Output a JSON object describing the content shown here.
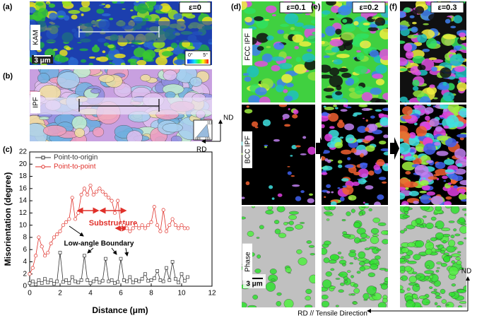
{
  "panels": {
    "a": {
      "label": "(a)",
      "strain": "ε=0",
      "map": "KAM",
      "scale": "3 μm",
      "key_min": "0°",
      "key_max": "5°"
    },
    "b": {
      "label": "(b)",
      "map": "IPF",
      "key": [
        "111",
        "001",
        "101"
      ]
    },
    "c": {
      "label": "(c)"
    },
    "ab_axes": {
      "nd": "ND",
      "rd": "RD"
    },
    "columns": [
      {
        "label": "(d)",
        "strain": "ε=0.1"
      },
      {
        "label": "(e)",
        "strain": "ε=0.2"
      },
      {
        "label": "(f)",
        "strain": "ε=0.3"
      }
    ],
    "rows": [
      "FCC IPF",
      "BCC IPF",
      "Phase"
    ],
    "scale": "3 μm",
    "right_axes": {
      "nd": "ND",
      "rd": "RD // Tensile Direction"
    }
  },
  "chart_data": {
    "type": "line",
    "xlabel": "Distance (μm)",
    "ylabel": "Misorientation (degree)",
    "x": [
      0.0,
      0.2,
      0.4,
      0.6,
      0.8,
      1.0,
      1.2,
      1.4,
      1.6,
      1.8,
      2.0,
      2.2,
      2.4,
      2.6,
      2.8,
      3.0,
      3.2,
      3.4,
      3.6,
      3.8,
      4.0,
      4.2,
      4.4,
      4.6,
      4.8,
      5.0,
      5.2,
      5.4,
      5.6,
      5.8,
      6.0,
      6.2,
      6.4,
      6.6,
      6.8,
      7.0,
      7.2,
      7.4,
      7.6,
      7.8,
      8.0,
      8.2,
      8.4,
      8.6,
      8.8,
      9.0,
      9.2,
      9.4,
      9.6,
      9.8,
      10.0,
      10.2,
      10.4
    ],
    "series": [
      {
        "name": "Point-to-origin",
        "color": "#333333",
        "marker": "square",
        "values": [
          0.5,
          0.8,
          0.3,
          1,
          0.5,
          1.2,
          0.6,
          1,
          0.4,
          0.8,
          5.5,
          0.7,
          1,
          0.5,
          1.5,
          0.8,
          0.6,
          1,
          5,
          1,
          0.5,
          0.8,
          1.2,
          0.6,
          0.9,
          4.5,
          0.8,
          1,
          0.5,
          0.7,
          4.5,
          1,
          0.8,
          1.5,
          0.6,
          1,
          0.8,
          1.2,
          2,
          0.9,
          1,
          1.3,
          2.5,
          1,
          0.8,
          3,
          1,
          4,
          1.2,
          0.6,
          2,
          0.9,
          1.5
        ]
      },
      {
        "name": "Point-to-point",
        "color": "#e0302a",
        "marker": "circle",
        "values": [
          2,
          3,
          5,
          8,
          6.5,
          5,
          5.5,
          7,
          8,
          8.5,
          9,
          10,
          10.5,
          11,
          14.5,
          11,
          12,
          15,
          16,
          15,
          16.5,
          15,
          15.5,
          16,
          15.5,
          15,
          14.5,
          14,
          12,
          14,
          10,
          10,
          9.5,
          9,
          9.5,
          10,
          9.5,
          10,
          9.5,
          10,
          10.5,
          13,
          10,
          9,
          12.5,
          9,
          10,
          11,
          10,
          9.5,
          10,
          9.5,
          9.5
        ]
      }
    ],
    "annotations": [
      "Substructure",
      "Low-angle Boundary"
    ],
    "xlim": [
      0,
      12
    ],
    "xticks": [
      0,
      2,
      4,
      6,
      8,
      10,
      12
    ],
    "ylim": [
      0,
      22
    ],
    "yticks": [
      0,
      2,
      4,
      6,
      8,
      10,
      12,
      14,
      16,
      18,
      20,
      22
    ]
  }
}
